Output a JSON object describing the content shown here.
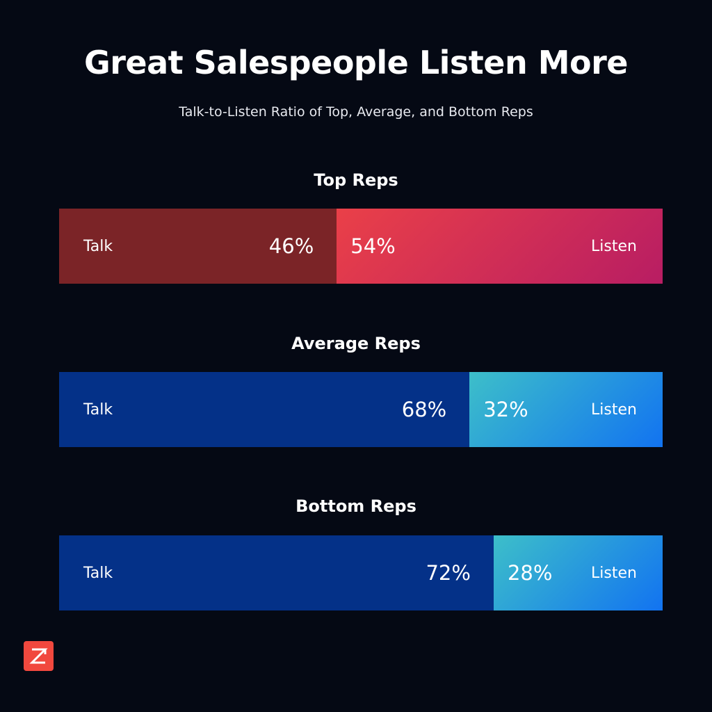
{
  "header": {
    "title": "Great Salespeople Listen More",
    "subtitle": "Talk-to-Listen Ratio of Top, Average, and Bottom Reps"
  },
  "logo": {
    "icon": "zoominfo-logo-icon",
    "color": "#f1483e"
  },
  "chart_data": {
    "type": "bar",
    "orientation": "horizontal",
    "stacked": true,
    "normalized": true,
    "categories": [
      "Top Reps",
      "Average Reps",
      "Bottom Reps"
    ],
    "series": [
      {
        "name": "Talk",
        "values": [
          46,
          68,
          72
        ]
      },
      {
        "name": "Listen",
        "values": [
          54,
          32,
          28
        ]
      }
    ],
    "data_labels": [
      [
        "46%",
        "68%",
        "72%"
      ],
      [
        "54%",
        "32%",
        "28%"
      ]
    ],
    "colors": {
      "top_talk": "#7b2427",
      "top_listen_gradient": [
        "#ea4048",
        "#b81d63"
      ],
      "talk": "#043188",
      "listen_gradient": [
        "#3dbfc9",
        "#1273f1"
      ]
    }
  }
}
